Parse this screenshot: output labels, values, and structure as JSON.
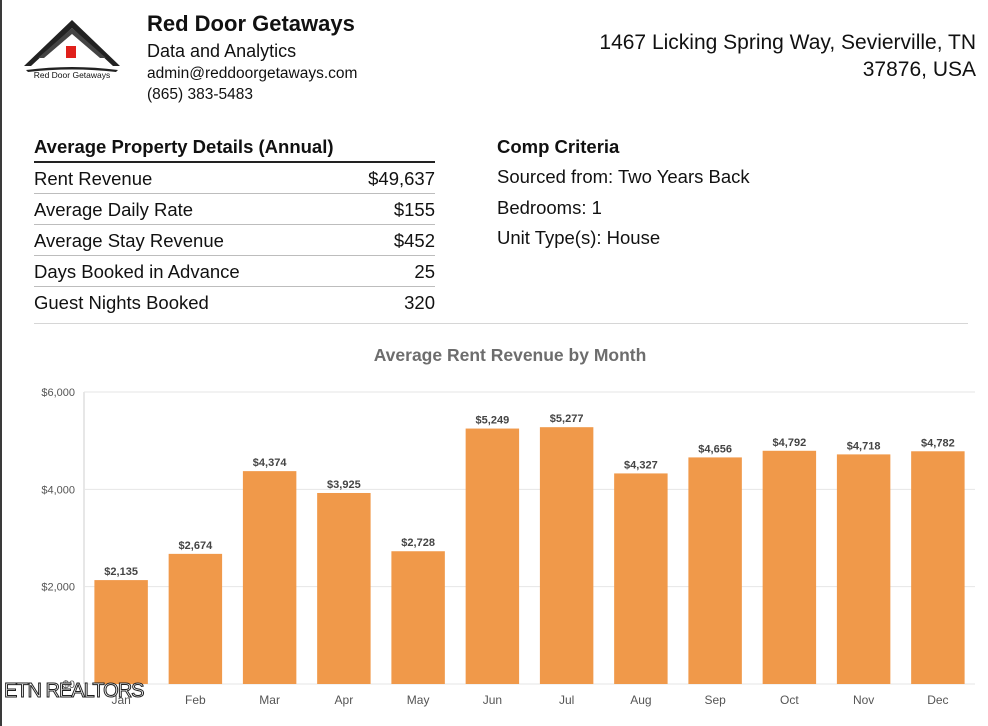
{
  "header": {
    "logo_text": "Red Door Getaways",
    "company_name": "Red Door Getaways",
    "subtitle": "Data and Analytics",
    "email": "admin@reddoorgetaways.com",
    "phone": "(865) 383-5483",
    "address_line1": "1467 Licking Spring Way, Sevierville, TN",
    "address_line2": "37876, USA"
  },
  "details": {
    "title": "Average Property Details (Annual)",
    "rows": [
      {
        "label": "Rent Revenue",
        "value": "$49,637"
      },
      {
        "label": "Average Daily Rate",
        "value": "$155"
      },
      {
        "label": "Average Stay Revenue",
        "value": "$452"
      },
      {
        "label": "Days Booked in Advance",
        "value": "25"
      },
      {
        "label": "Guest Nights Booked",
        "value": "320"
      }
    ]
  },
  "criteria": {
    "title": "Comp Criteria",
    "lines": [
      "Sourced from: Two Years Back",
      "Bedrooms: 1",
      "Unit Type(s):  House"
    ]
  },
  "chart_data": {
    "type": "bar",
    "title": "Average Rent Revenue by Month",
    "categories": [
      "Jan",
      "Feb",
      "Mar",
      "Apr",
      "May",
      "Jun",
      "Jul",
      "Aug",
      "Sep",
      "Oct",
      "Nov",
      "Dec"
    ],
    "values": [
      2135,
      2674,
      4374,
      3925,
      2728,
      5249,
      5277,
      4327,
      4656,
      4792,
      4718,
      4782
    ],
    "value_labels": [
      "$2,135",
      "$2,674",
      "$4,374",
      "$3,925",
      "$2,728",
      "$5,249",
      "$5,277",
      "$4,327",
      "$4,656",
      "$4,792",
      "$4,718",
      "$4,782"
    ],
    "ylim": [
      0,
      6000
    ],
    "yticks": [
      0,
      2000,
      4000,
      6000
    ],
    "ytick_labels": [
      "$0",
      "$2,000",
      "$4,000",
      "$6,000"
    ],
    "grid": true,
    "bar_color": "#f0994a"
  },
  "watermark": "ETN REALTORS"
}
